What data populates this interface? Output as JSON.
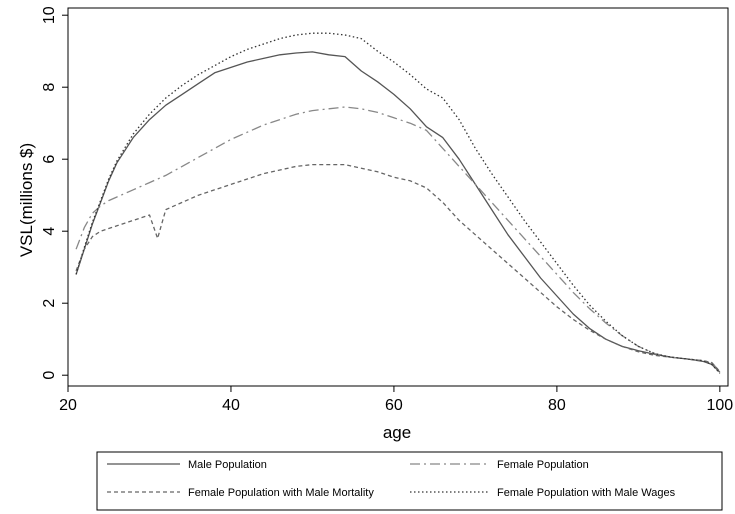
{
  "chart_data": {
    "type": "line",
    "xlabel": "age",
    "ylabel": "VSL(millions $)",
    "xlim": [
      20,
      101
    ],
    "ylim": [
      -0.3,
      10.2
    ],
    "xticks": [
      20,
      40,
      60,
      80,
      100
    ],
    "yticks": [
      0,
      2,
      4,
      6,
      8,
      10
    ],
    "grid": false,
    "legend_position": "bottom",
    "series": [
      {
        "name": "Male Population",
        "dash": "solid",
        "color": "#555555",
        "points": [
          [
            21,
            2.8
          ],
          [
            22,
            3.5
          ],
          [
            23,
            4.2
          ],
          [
            24,
            4.8
          ],
          [
            25,
            5.4
          ],
          [
            26,
            5.9
          ],
          [
            28,
            6.6
          ],
          [
            30,
            7.1
          ],
          [
            32,
            7.5
          ],
          [
            34,
            7.8
          ],
          [
            36,
            8.1
          ],
          [
            38,
            8.4
          ],
          [
            40,
            8.55
          ],
          [
            42,
            8.7
          ],
          [
            44,
            8.8
          ],
          [
            46,
            8.9
          ],
          [
            48,
            8.95
          ],
          [
            50,
            8.98
          ],
          [
            52,
            8.9
          ],
          [
            54,
            8.85
          ],
          [
            56,
            8.45
          ],
          [
            58,
            8.15
          ],
          [
            60,
            7.8
          ],
          [
            62,
            7.4
          ],
          [
            64,
            6.9
          ],
          [
            66,
            6.6
          ],
          [
            68,
            6.0
          ],
          [
            70,
            5.3
          ],
          [
            72,
            4.6
          ],
          [
            74,
            3.9
          ],
          [
            76,
            3.3
          ],
          [
            78,
            2.7
          ],
          [
            80,
            2.2
          ],
          [
            82,
            1.7
          ],
          [
            84,
            1.3
          ],
          [
            86,
            1.0
          ],
          [
            88,
            0.8
          ],
          [
            90,
            0.68
          ],
          [
            92,
            0.58
          ],
          [
            94,
            0.5
          ],
          [
            96,
            0.45
          ],
          [
            98,
            0.38
          ],
          [
            99,
            0.3
          ],
          [
            100,
            0.08
          ]
        ]
      },
      {
        "name": "Female Population",
        "dash": "dashdot",
        "color": "#888888",
        "points": [
          [
            21,
            3.5
          ],
          [
            22,
            4.1
          ],
          [
            23,
            4.5
          ],
          [
            24,
            4.7
          ],
          [
            25,
            4.85
          ],
          [
            26,
            4.95
          ],
          [
            28,
            5.15
          ],
          [
            30,
            5.35
          ],
          [
            32,
            5.55
          ],
          [
            34,
            5.8
          ],
          [
            36,
            6.05
          ],
          [
            38,
            6.3
          ],
          [
            40,
            6.55
          ],
          [
            42,
            6.75
          ],
          [
            44,
            6.95
          ],
          [
            46,
            7.1
          ],
          [
            48,
            7.25
          ],
          [
            50,
            7.35
          ],
          [
            52,
            7.4
          ],
          [
            54,
            7.45
          ],
          [
            56,
            7.4
          ],
          [
            58,
            7.3
          ],
          [
            60,
            7.15
          ],
          [
            62,
            7.0
          ],
          [
            64,
            6.8
          ],
          [
            66,
            6.3
          ],
          [
            68,
            5.8
          ],
          [
            70,
            5.3
          ],
          [
            72,
            4.8
          ],
          [
            74,
            4.3
          ],
          [
            76,
            3.8
          ],
          [
            78,
            3.3
          ],
          [
            80,
            2.8
          ],
          [
            82,
            2.3
          ],
          [
            84,
            1.85
          ],
          [
            86,
            1.45
          ],
          [
            88,
            1.1
          ],
          [
            90,
            0.8
          ],
          [
            92,
            0.6
          ],
          [
            94,
            0.5
          ],
          [
            96,
            0.45
          ],
          [
            98,
            0.4
          ],
          [
            99,
            0.35
          ],
          [
            100,
            0.1
          ]
        ]
      },
      {
        "name": "Female Population with Male Mortality",
        "dash": "dashed",
        "color": "#666666",
        "points": [
          [
            21,
            2.9
          ],
          [
            22,
            3.5
          ],
          [
            23,
            3.85
          ],
          [
            24,
            4.0
          ],
          [
            26,
            4.15
          ],
          [
            28,
            4.3
          ],
          [
            30,
            4.45
          ],
          [
            31,
            3.8
          ],
          [
            32,
            4.6
          ],
          [
            34,
            4.8
          ],
          [
            36,
            5.0
          ],
          [
            38,
            5.15
          ],
          [
            40,
            5.3
          ],
          [
            42,
            5.45
          ],
          [
            44,
            5.6
          ],
          [
            46,
            5.7
          ],
          [
            48,
            5.8
          ],
          [
            50,
            5.85
          ],
          [
            52,
            5.85
          ],
          [
            54,
            5.85
          ],
          [
            56,
            5.75
          ],
          [
            58,
            5.65
          ],
          [
            60,
            5.5
          ],
          [
            62,
            5.4
          ],
          [
            64,
            5.2
          ],
          [
            66,
            4.8
          ],
          [
            68,
            4.3
          ],
          [
            70,
            3.9
          ],
          [
            72,
            3.5
          ],
          [
            74,
            3.1
          ],
          [
            76,
            2.7
          ],
          [
            78,
            2.3
          ],
          [
            80,
            1.9
          ],
          [
            82,
            1.55
          ],
          [
            84,
            1.25
          ],
          [
            86,
            1.0
          ],
          [
            88,
            0.8
          ],
          [
            90,
            0.65
          ],
          [
            92,
            0.55
          ],
          [
            94,
            0.5
          ],
          [
            96,
            0.45
          ],
          [
            98,
            0.4
          ],
          [
            99,
            0.35
          ],
          [
            100,
            0.1
          ]
        ]
      },
      {
        "name": "Female Population with Male Wages",
        "dash": "dotted",
        "color": "#333333",
        "points": [
          [
            21,
            2.8
          ],
          [
            22,
            3.55
          ],
          [
            23,
            4.25
          ],
          [
            24,
            4.85
          ],
          [
            25,
            5.45
          ],
          [
            26,
            5.95
          ],
          [
            28,
            6.7
          ],
          [
            30,
            7.25
          ],
          [
            32,
            7.7
          ],
          [
            34,
            8.05
          ],
          [
            36,
            8.35
          ],
          [
            38,
            8.6
          ],
          [
            40,
            8.85
          ],
          [
            42,
            9.05
          ],
          [
            44,
            9.2
          ],
          [
            46,
            9.35
          ],
          [
            48,
            9.45
          ],
          [
            50,
            9.5
          ],
          [
            52,
            9.5
          ],
          [
            54,
            9.45
          ],
          [
            56,
            9.35
          ],
          [
            58,
            9.0
          ],
          [
            60,
            8.7
          ],
          [
            62,
            8.35
          ],
          [
            64,
            7.95
          ],
          [
            66,
            7.7
          ],
          [
            68,
            7.1
          ],
          [
            70,
            6.3
          ],
          [
            72,
            5.6
          ],
          [
            74,
            4.95
          ],
          [
            76,
            4.3
          ],
          [
            78,
            3.7
          ],
          [
            80,
            3.1
          ],
          [
            82,
            2.5
          ],
          [
            84,
            1.95
          ],
          [
            86,
            1.5
          ],
          [
            88,
            1.1
          ],
          [
            90,
            0.8
          ],
          [
            92,
            0.6
          ],
          [
            94,
            0.5
          ],
          [
            96,
            0.45
          ],
          [
            98,
            0.4
          ],
          [
            99,
            0.3
          ],
          [
            100,
            0.05
          ]
        ]
      }
    ]
  }
}
